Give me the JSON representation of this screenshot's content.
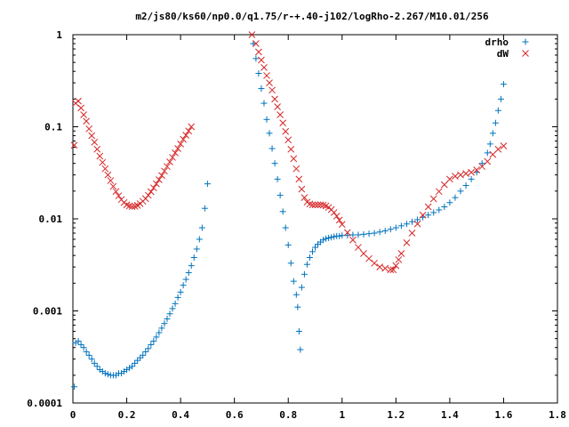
{
  "chart_data": {
    "type": "scatter",
    "title": "m2/js80/ks60/np0.0/q1.75/r-+.40-j102/logRho-2.267/M10.01/256",
    "xlabel": "",
    "ylabel": "",
    "xlim": [
      0,
      1.8
    ],
    "ylim": [
      0.0001,
      1
    ],
    "y_scale": "log",
    "x_ticks": [
      0,
      0.2,
      0.4,
      0.6,
      0.8,
      1,
      1.2,
      1.4,
      1.6,
      1.8
    ],
    "x_tick_labels": [
      "0",
      "0.2",
      "0.4",
      "0.6",
      "0.8",
      "1",
      "1.2",
      "1.4",
      "1.6",
      "1.8"
    ],
    "y_ticks": [
      0.0001,
      0.001,
      0.01,
      0.1,
      1
    ],
    "y_tick_labels": [
      "0.0001",
      "0.001",
      "0.01",
      "0.1",
      "1"
    ],
    "grid": false,
    "legend_position": "top-right",
    "series": [
      {
        "name": "drho",
        "marker": "plus",
        "color": "#0072bd",
        "points": [
          [
            0.005,
            0.00015
          ],
          [
            0.01,
            0.00045
          ],
          [
            0.02,
            0.00047
          ],
          [
            0.03,
            0.00043
          ],
          [
            0.04,
            0.0004
          ],
          [
            0.05,
            0.00036
          ],
          [
            0.06,
            0.00033
          ],
          [
            0.07,
            0.0003
          ],
          [
            0.08,
            0.00027
          ],
          [
            0.09,
            0.00025
          ],
          [
            0.1,
            0.00023
          ],
          [
            0.11,
            0.00022
          ],
          [
            0.12,
            0.00021
          ],
          [
            0.13,
            0.000205
          ],
          [
            0.14,
            0.0002
          ],
          [
            0.15,
            0.0002
          ],
          [
            0.16,
            0.0002
          ],
          [
            0.17,
            0.00021
          ],
          [
            0.18,
            0.00021
          ],
          [
            0.19,
            0.00022
          ],
          [
            0.2,
            0.00023
          ],
          [
            0.21,
            0.00024
          ],
          [
            0.22,
            0.00025
          ],
          [
            0.23,
            0.00027
          ],
          [
            0.24,
            0.00029
          ],
          [
            0.25,
            0.00031
          ],
          [
            0.26,
            0.00033
          ],
          [
            0.27,
            0.00036
          ],
          [
            0.28,
            0.00039
          ],
          [
            0.29,
            0.00043
          ],
          [
            0.3,
            0.00047
          ],
          [
            0.31,
            0.00052
          ],
          [
            0.32,
            0.00058
          ],
          [
            0.33,
            0.00065
          ],
          [
            0.34,
            0.00073
          ],
          [
            0.35,
            0.00082
          ],
          [
            0.36,
            0.00093
          ],
          [
            0.37,
            0.00106
          ],
          [
            0.38,
            0.0012
          ],
          [
            0.39,
            0.0014
          ],
          [
            0.4,
            0.0016
          ],
          [
            0.41,
            0.0019
          ],
          [
            0.42,
            0.0022
          ],
          [
            0.43,
            0.0026
          ],
          [
            0.44,
            0.0031
          ],
          [
            0.45,
            0.0038
          ],
          [
            0.46,
            0.0047
          ],
          [
            0.47,
            0.006
          ],
          [
            0.48,
            0.008
          ],
          [
            0.49,
            0.013
          ],
          [
            0.5,
            0.024
          ],
          [
            0.67,
            0.8
          ],
          [
            0.68,
            0.55
          ],
          [
            0.69,
            0.38
          ],
          [
            0.7,
            0.26
          ],
          [
            0.71,
            0.18
          ],
          [
            0.72,
            0.12
          ],
          [
            0.73,
            0.085
          ],
          [
            0.74,
            0.058
          ],
          [
            0.75,
            0.04
          ],
          [
            0.76,
            0.027
          ],
          [
            0.77,
            0.018
          ],
          [
            0.78,
            0.012
          ],
          [
            0.79,
            0.008
          ],
          [
            0.8,
            0.0052
          ],
          [
            0.81,
            0.0033
          ],
          [
            0.82,
            0.0021
          ],
          [
            0.83,
            0.0015
          ],
          [
            0.835,
            0.0011
          ],
          [
            0.84,
            0.0006
          ],
          [
            0.845,
            0.00038
          ],
          [
            0.85,
            0.0018
          ],
          [
            0.86,
            0.0025
          ],
          [
            0.87,
            0.0032
          ],
          [
            0.88,
            0.0038
          ],
          [
            0.89,
            0.0044
          ],
          [
            0.9,
            0.0049
          ],
          [
            0.91,
            0.0053
          ],
          [
            0.92,
            0.0056
          ],
          [
            0.93,
            0.0059
          ],
          [
            0.94,
            0.0061
          ],
          [
            0.95,
            0.0062
          ],
          [
            0.96,
            0.0063
          ],
          [
            0.97,
            0.0064
          ],
          [
            0.98,
            0.0065
          ],
          [
            0.99,
            0.0065
          ],
          [
            1.0,
            0.0066
          ],
          [
            1.02,
            0.0066
          ],
          [
            1.04,
            0.0067
          ],
          [
            1.06,
            0.0067
          ],
          [
            1.08,
            0.0068
          ],
          [
            1.1,
            0.0069
          ],
          [
            1.12,
            0.007
          ],
          [
            1.14,
            0.0072
          ],
          [
            1.16,
            0.0074
          ],
          [
            1.18,
            0.0077
          ],
          [
            1.2,
            0.008
          ],
          [
            1.22,
            0.0084
          ],
          [
            1.24,
            0.0088
          ],
          [
            1.26,
            0.0093
          ],
          [
            1.28,
            0.0098
          ],
          [
            1.3,
            0.0104
          ],
          [
            1.32,
            0.011
          ],
          [
            1.34,
            0.0117
          ],
          [
            1.36,
            0.0125
          ],
          [
            1.38,
            0.0135
          ],
          [
            1.4,
            0.015
          ],
          [
            1.42,
            0.017
          ],
          [
            1.44,
            0.02
          ],
          [
            1.46,
            0.023
          ],
          [
            1.48,
            0.027
          ],
          [
            1.5,
            0.032
          ],
          [
            1.52,
            0.04
          ],
          [
            1.54,
            0.052
          ],
          [
            1.55,
            0.065
          ],
          [
            1.56,
            0.085
          ],
          [
            1.57,
            0.11
          ],
          [
            1.58,
            0.15
          ],
          [
            1.59,
            0.2
          ],
          [
            1.6,
            0.29
          ]
        ]
      },
      {
        "name": "dW",
        "marker": "cross",
        "color": "#d62728",
        "points": [
          [
            0.005,
            0.063
          ],
          [
            0.01,
            0.18
          ],
          [
            0.02,
            0.19
          ],
          [
            0.03,
            0.16
          ],
          [
            0.04,
            0.135
          ],
          [
            0.05,
            0.115
          ],
          [
            0.06,
            0.095
          ],
          [
            0.07,
            0.08
          ],
          [
            0.08,
            0.068
          ],
          [
            0.09,
            0.057
          ],
          [
            0.1,
            0.048
          ],
          [
            0.11,
            0.041
          ],
          [
            0.12,
            0.035
          ],
          [
            0.13,
            0.03
          ],
          [
            0.14,
            0.026
          ],
          [
            0.15,
            0.0225
          ],
          [
            0.16,
            0.0198
          ],
          [
            0.17,
            0.0178
          ],
          [
            0.18,
            0.0162
          ],
          [
            0.19,
            0.015
          ],
          [
            0.2,
            0.0142
          ],
          [
            0.21,
            0.0138
          ],
          [
            0.22,
            0.0136
          ],
          [
            0.23,
            0.0137
          ],
          [
            0.24,
            0.014
          ],
          [
            0.25,
            0.0146
          ],
          [
            0.26,
            0.0155
          ],
          [
            0.27,
            0.0166
          ],
          [
            0.28,
            0.018
          ],
          [
            0.29,
            0.0197
          ],
          [
            0.3,
            0.0217
          ],
          [
            0.31,
            0.024
          ],
          [
            0.32,
            0.0266
          ],
          [
            0.33,
            0.0296
          ],
          [
            0.34,
            0.033
          ],
          [
            0.35,
            0.037
          ],
          [
            0.36,
            0.0415
          ],
          [
            0.37,
            0.0465
          ],
          [
            0.38,
            0.052
          ],
          [
            0.39,
            0.058
          ],
          [
            0.4,
            0.065
          ],
          [
            0.41,
            0.073
          ],
          [
            0.42,
            0.081
          ],
          [
            0.43,
            0.09
          ],
          [
            0.44,
            0.1
          ],
          [
            0.665,
            1.0
          ],
          [
            0.68,
            0.8
          ],
          [
            0.69,
            0.65
          ],
          [
            0.7,
            0.53
          ],
          [
            0.71,
            0.44
          ],
          [
            0.72,
            0.36
          ],
          [
            0.73,
            0.3
          ],
          [
            0.74,
            0.25
          ],
          [
            0.75,
            0.2
          ],
          [
            0.76,
            0.165
          ],
          [
            0.77,
            0.135
          ],
          [
            0.78,
            0.11
          ],
          [
            0.79,
            0.089
          ],
          [
            0.8,
            0.072
          ],
          [
            0.81,
            0.057
          ],
          [
            0.82,
            0.045
          ],
          [
            0.83,
            0.035
          ],
          [
            0.84,
            0.027
          ],
          [
            0.85,
            0.021
          ],
          [
            0.86,
            0.017
          ],
          [
            0.87,
            0.0152
          ],
          [
            0.88,
            0.0145
          ],
          [
            0.89,
            0.0142
          ],
          [
            0.9,
            0.0142
          ],
          [
            0.91,
            0.0142
          ],
          [
            0.92,
            0.0142
          ],
          [
            0.93,
            0.0141
          ],
          [
            0.94,
            0.0138
          ],
          [
            0.95,
            0.0133
          ],
          [
            0.96,
            0.0126
          ],
          [
            0.97,
            0.0117
          ],
          [
            0.98,
            0.0107
          ],
          [
            0.99,
            0.0097
          ],
          [
            1.0,
            0.0087
          ],
          [
            1.02,
            0.0071
          ],
          [
            1.04,
            0.0059
          ],
          [
            1.06,
            0.0049
          ],
          [
            1.08,
            0.0042
          ],
          [
            1.1,
            0.0037
          ],
          [
            1.12,
            0.0033
          ],
          [
            1.14,
            0.003
          ],
          [
            1.16,
            0.0029
          ],
          [
            1.18,
            0.0028
          ],
          [
            1.19,
            0.0028
          ],
          [
            1.2,
            0.0031
          ],
          [
            1.21,
            0.0036
          ],
          [
            1.22,
            0.0042
          ],
          [
            1.24,
            0.0055
          ],
          [
            1.26,
            0.007
          ],
          [
            1.28,
            0.0088
          ],
          [
            1.3,
            0.011
          ],
          [
            1.32,
            0.0135
          ],
          [
            1.34,
            0.0165
          ],
          [
            1.36,
            0.0198
          ],
          [
            1.38,
            0.0235
          ],
          [
            1.4,
            0.027
          ],
          [
            1.42,
            0.029
          ],
          [
            1.44,
            0.03
          ],
          [
            1.46,
            0.031
          ],
          [
            1.48,
            0.032
          ],
          [
            1.5,
            0.034
          ],
          [
            1.52,
            0.037
          ],
          [
            1.54,
            0.042
          ],
          [
            1.56,
            0.05
          ],
          [
            1.58,
            0.057
          ],
          [
            1.6,
            0.062
          ]
        ]
      }
    ]
  }
}
